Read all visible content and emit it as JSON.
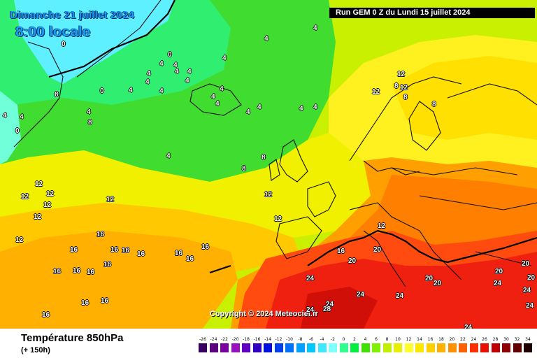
{
  "header": {
    "date": "Dimanche 21 juillet 2024",
    "time": "8:00 locale",
    "run": "Run GEM 0 Z du Lundi 15 juillet 2024"
  },
  "copyright": "Copyright © 2024 Meteociel.fr",
  "footer": {
    "variable": "Température 850hPa",
    "lead": "(+ 150h)"
  },
  "legend": {
    "ticks": [
      "-26",
      "-24",
      "-22",
      "-20",
      "-18",
      "-16",
      "-14",
      "-12",
      "-10",
      "-8",
      "-6",
      "-4",
      "-2",
      "0",
      "2",
      "4",
      "6",
      "8",
      "10",
      "12",
      "14",
      "16",
      "18",
      "20",
      "22",
      "24",
      "26",
      "28",
      "30",
      "32",
      "34"
    ],
    "colors": [
      "#3a0060",
      "#5a0080",
      "#7a00a0",
      "#9a10c0",
      "#6000c0",
      "#3000c0",
      "#0010e0",
      "#0040f0",
      "#0070ff",
      "#00a0ff",
      "#00c8ff",
      "#40e8ff",
      "#80ffff",
      "#30ff90",
      "#00f040",
      "#40e000",
      "#80f000",
      "#c0f000",
      "#e8f000",
      "#ffff30",
      "#ffe800",
      "#ffd000",
      "#ffb000",
      "#ff9000",
      "#ff6000",
      "#ff3000",
      "#e81000",
      "#c00000",
      "#900000",
      "#600000",
      "#200000"
    ]
  },
  "isotherm_labels": [
    {
      "v": "4"
    },
    {
      "v": "4"
    },
    {
      "v": "0"
    },
    {
      "v": "0"
    },
    {
      "v": "4"
    },
    {
      "v": "4"
    },
    {
      "v": "4"
    },
    {
      "v": "4"
    },
    {
      "v": "4"
    },
    {
      "v": "4"
    },
    {
      "v": "0"
    },
    {
      "v": "8"
    },
    {
      "v": "4"
    },
    {
      "v": "4"
    },
    {
      "v": "4"
    },
    {
      "v": "4"
    },
    {
      "v": "4"
    },
    {
      "v": "4"
    },
    {
      "v": "8"
    },
    {
      "v": "0"
    },
    {
      "v": "4"
    },
    {
      "v": "4"
    },
    {
      "v": "4"
    },
    {
      "v": "4"
    },
    {
      "v": "4"
    },
    {
      "v": "4"
    },
    {
      "v": "4"
    },
    {
      "v": "4"
    },
    {
      "v": "4"
    },
    {
      "v": "8"
    },
    {
      "v": "8"
    },
    {
      "v": "12"
    },
    {
      "v": "12"
    },
    {
      "v": "12"
    },
    {
      "v": "8"
    },
    {
      "v": "8"
    },
    {
      "v": "8"
    },
    {
      "v": "12"
    },
    {
      "v": "12"
    },
    {
      "v": "12"
    },
    {
      "v": "12"
    },
    {
      "v": "12"
    },
    {
      "v": "12"
    },
    {
      "v": "12"
    },
    {
      "v": "12"
    },
    {
      "v": "12"
    },
    {
      "v": "16"
    },
    {
      "v": "12"
    },
    {
      "v": "16"
    },
    {
      "v": "16"
    },
    {
      "v": "16"
    },
    {
      "v": "16"
    },
    {
      "v": "16"
    },
    {
      "v": "16"
    },
    {
      "v": "16"
    },
    {
      "v": "16"
    },
    {
      "v": "16"
    },
    {
      "v": "16"
    },
    {
      "v": "16"
    },
    {
      "v": "16"
    },
    {
      "v": "16"
    },
    {
      "v": "16"
    },
    {
      "v": "20"
    },
    {
      "v": "20"
    },
    {
      "v": "24"
    },
    {
      "v": "24"
    },
    {
      "v": "24"
    },
    {
      "v": "24"
    },
    {
      "v": "24"
    },
    {
      "v": "28"
    },
    {
      "v": "24"
    },
    {
      "v": "20"
    },
    {
      "v": "20"
    },
    {
      "v": "20"
    },
    {
      "v": "24"
    },
    {
      "v": "20"
    },
    {
      "v": "24"
    },
    {
      "v": "24"
    },
    {
      "v": "16"
    },
    {
      "v": "20"
    }
  ]
}
